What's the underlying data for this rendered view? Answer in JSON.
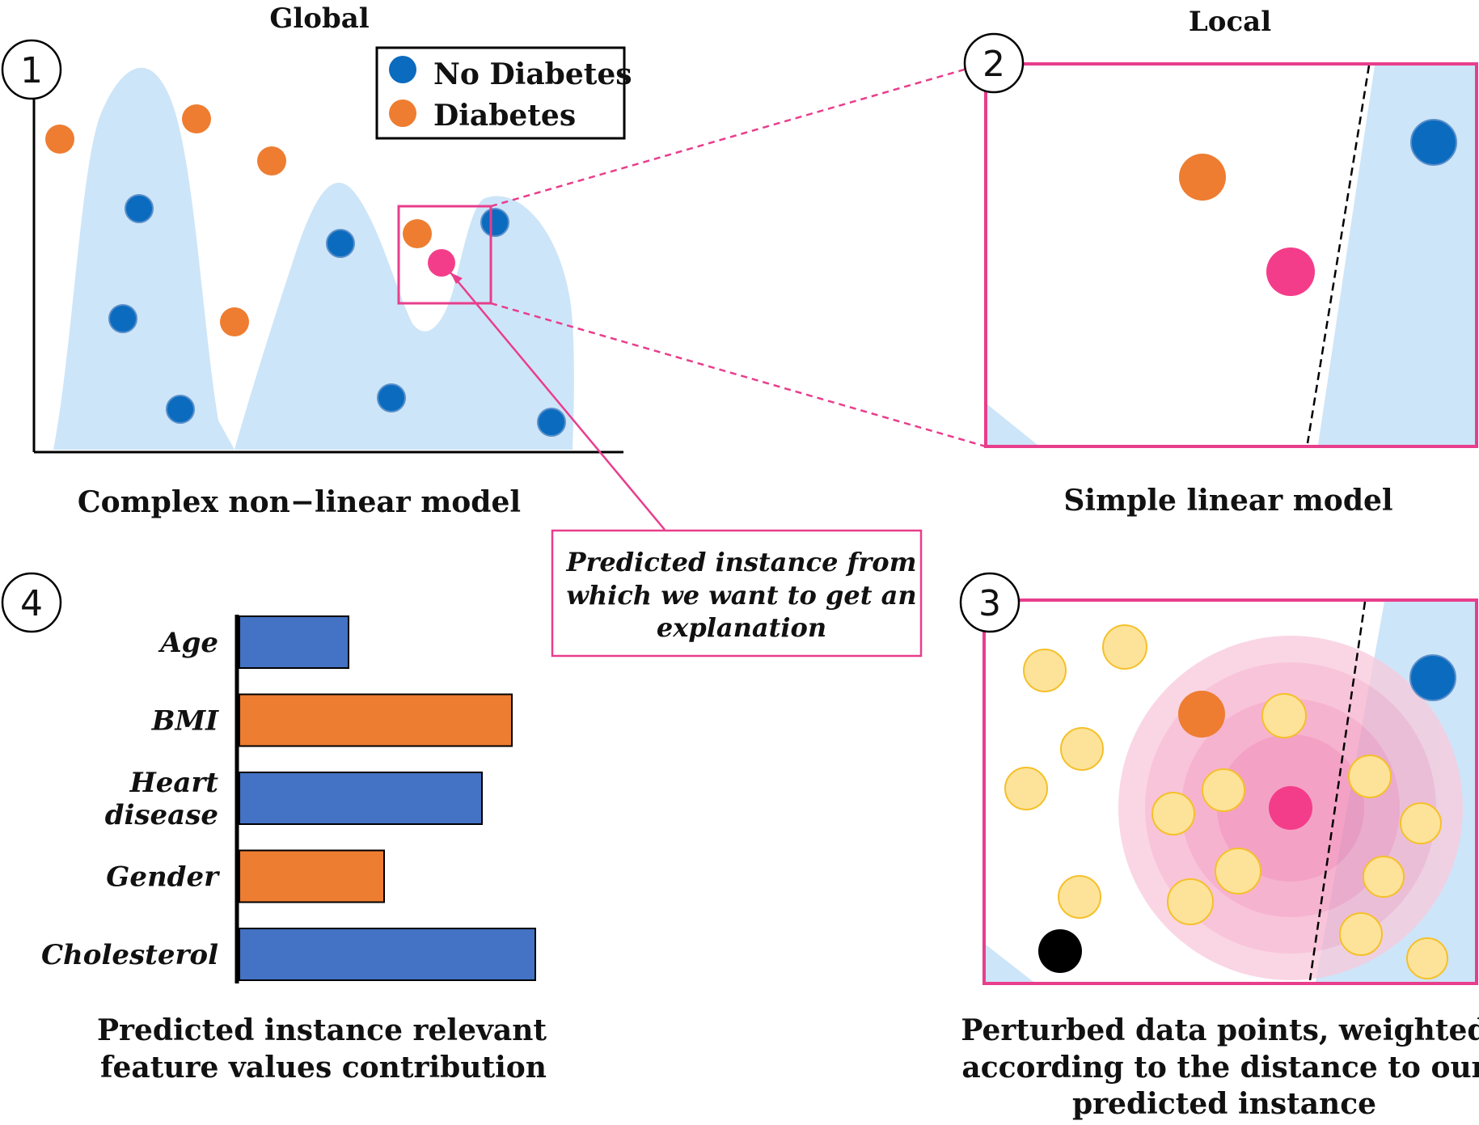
{
  "panel1": {
    "number": "1",
    "title": "Global",
    "caption": "Complex non−linear model",
    "legend": [
      {
        "label": "No Diabetes",
        "color": "#0b6bbf"
      },
      {
        "label": "Diabetes",
        "color": "#ee7d31"
      }
    ]
  },
  "panel2": {
    "number": "2",
    "title": "Local",
    "caption": "Simple linear model"
  },
  "panel3": {
    "number": "3",
    "caption_lines": [
      "Perturbed data points,  weighted",
      "according  to the distance to our",
      "predicted instance"
    ]
  },
  "panel4": {
    "number": "4",
    "caption_lines": [
      "Predicted instance relevant",
      "feature values contribution"
    ]
  },
  "callout": {
    "lines": [
      "Predicted instance from",
      "which we want to get an",
      "explanation"
    ]
  },
  "colors": {
    "blue_point": "#0b6bbf",
    "orange_point": "#ee7d31",
    "pink_instance": "#f43d8a",
    "pink_border": "#e83e8c",
    "light_region": "#cde5f8",
    "perturbed_fill": "#fde39a",
    "perturbed_stroke": "#f5c02a",
    "bar_blue": "#4472c4",
    "bar_orange": "#ed7d31"
  },
  "chart_data": {
    "type": "bar",
    "orientation": "horizontal",
    "categories": [
      "Age",
      "BMI",
      "Heart disease",
      "Gender",
      "Cholesterol"
    ],
    "category_lines": [
      [
        "Age"
      ],
      [
        "BMI"
      ],
      [
        "Heart",
        "disease"
      ],
      [
        "Gender"
      ],
      [
        "Cholesterol"
      ]
    ],
    "values": [
      0.37,
      0.92,
      0.82,
      0.49,
      1.0
    ],
    "bar_colors": [
      "#4472c4",
      "#ed7d31",
      "#4472c4",
      "#ed7d31",
      "#4472c4"
    ],
    "title": "",
    "xlabel": "",
    "ylabel": ""
  }
}
